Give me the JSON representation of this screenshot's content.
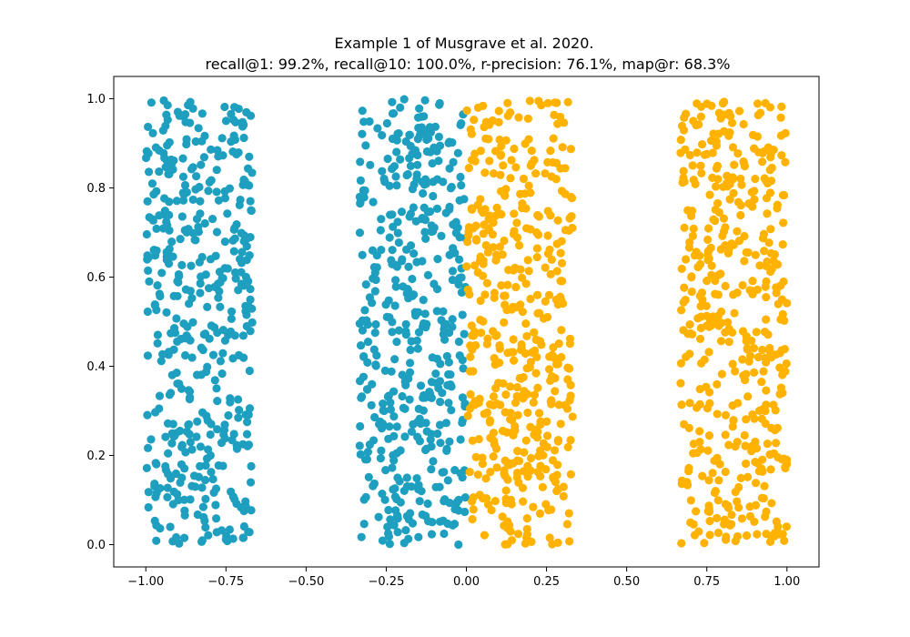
{
  "chart_data": {
    "type": "scatter",
    "title": "Example 1 of Musgrave et al. 2020.",
    "subtitle": "recall@1: 99.2%, recall@10: 100.0%, r-precision: 76.1%, map@r: 68.3%",
    "xlim": [
      -1.1,
      1.1
    ],
    "ylim": [
      -0.05,
      1.05
    ],
    "x_ticks": [
      -1.0,
      -0.75,
      -0.5,
      -0.25,
      0.0,
      0.25,
      0.5,
      0.75,
      1.0
    ],
    "x_tick_labels": [
      "−1.00",
      "−0.75",
      "−0.50",
      "−0.25",
      "0.00",
      "0.25",
      "0.50",
      "0.75",
      "1.00"
    ],
    "y_ticks": [
      0.0,
      0.2,
      0.4,
      0.6,
      0.8,
      1.0
    ],
    "y_tick_labels": [
      "0.0",
      "0.2",
      "0.4",
      "0.6",
      "0.8",
      "1.0"
    ],
    "grid": false,
    "legend": "none",
    "series": [
      {
        "color": "#1f9fbf",
        "clusters": [
          {
            "x_range": [
              -1.0,
              -0.667
            ],
            "y_range": [
              0.0,
              1.0
            ],
            "count": 450
          },
          {
            "x_range": [
              -0.333,
              0.0
            ],
            "y_range": [
              0.0,
              1.0
            ],
            "count": 450
          }
        ]
      },
      {
        "color": "#ffb300",
        "clusters": [
          {
            "x_range": [
              0.0,
              0.333
            ],
            "y_range": [
              0.0,
              1.0
            ],
            "count": 450
          },
          {
            "x_range": [
              0.667,
              1.0
            ],
            "y_range": [
              0.0,
              1.0
            ],
            "count": 450
          }
        ]
      }
    ]
  }
}
